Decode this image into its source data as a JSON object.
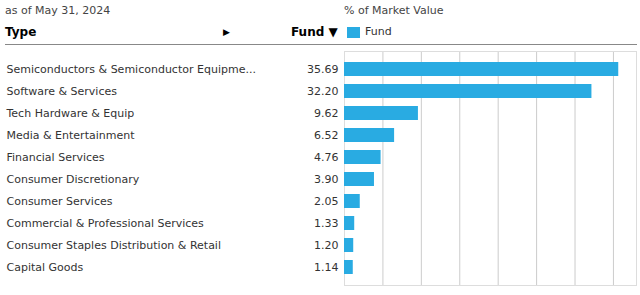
{
  "chart_data": {
    "type": "bar",
    "orientation": "horizontal",
    "title": "as of May 31, 2024",
    "xlabel": "% of Market Value",
    "annotations": [
      "Type",
      "▶",
      "Fund ▼"
    ],
    "categories": [
      "Semiconductors & Semiconductor Equipme...",
      "Software & Services",
      "Tech Hardware & Equip",
      "Media & Entertainment",
      "Financial Services",
      "Consumer Discretionary",
      "Consumer Services",
      "Commercial & Professional Services",
      "Consumer Staples Distribution & Retail",
      "Capital Goods"
    ],
    "series": [
      {
        "name": "Fund",
        "color": "#29ABE2",
        "values": [
          35.69,
          32.2,
          9.62,
          6.52,
          4.76,
          3.9,
          2.05,
          1.33,
          1.2,
          1.14
        ],
        "value_labels": [
          "35.69",
          "32.20",
          "9.62",
          "6.52",
          "4.76",
          "3.90",
          "2.05",
          "1.33",
          "1.20",
          "1.14"
        ]
      }
    ],
    "xlim": [
      0,
      38
    ],
    "xticks": [
      0,
      5,
      10,
      15,
      20,
      25,
      30,
      35
    ],
    "grid": true,
    "legend": "top left",
    "data_labels": true,
    "tick_labels": "y"
  }
}
